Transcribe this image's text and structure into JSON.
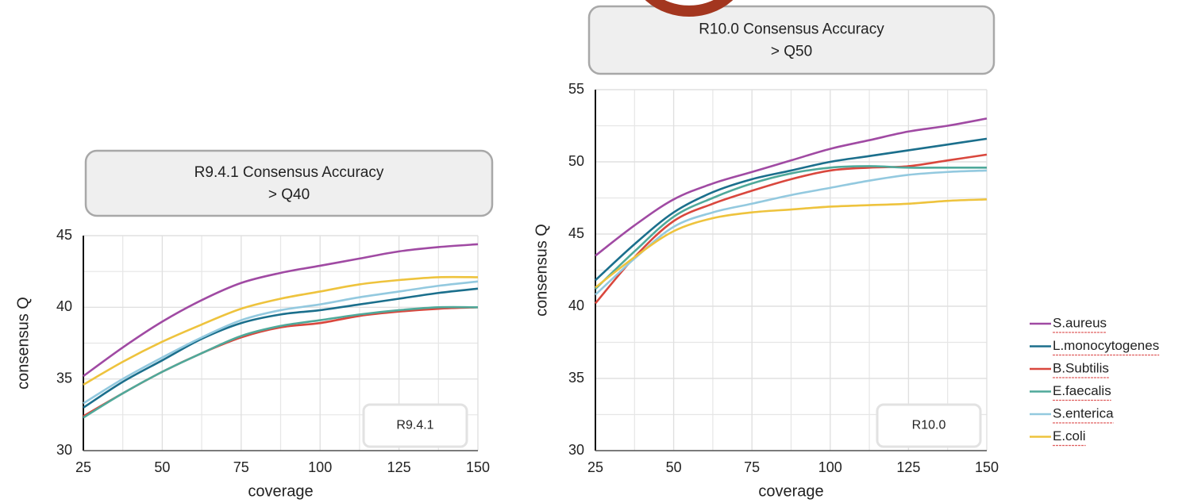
{
  "chart_data": [
    {
      "type": "line",
      "title": "R9.4.1 Consensus Accuracy",
      "subtitle": "> Q40",
      "annotation": "R9.4.1",
      "x_label": "coverage",
      "y_label": "consensus Q",
      "x": [
        25,
        37.5,
        50,
        62.5,
        75,
        87.5,
        100,
        112.5,
        125,
        137.5,
        150
      ],
      "xlim": [
        25,
        150
      ],
      "xticks": [
        25,
        50,
        75,
        100,
        125,
        150
      ],
      "ylim": [
        30,
        45
      ],
      "yticks": [
        30,
        35,
        40,
        45
      ],
      "grid": true,
      "series": [
        {
          "color": "#a04aa3",
          "values": [
            35.2,
            37.2,
            39,
            40.5,
            41.7,
            42.4,
            42.9,
            43.4,
            43.9,
            44.2,
            44.4
          ]
        },
        {
          "color": "#1b6f8c",
          "values": [
            33.0,
            34.8,
            36.3,
            37.8,
            38.9,
            39.5,
            39.8,
            40.2,
            40.6,
            41,
            41.3
          ]
        },
        {
          "color": "#d9473d",
          "values": [
            32.4,
            34,
            35.5,
            36.8,
            37.9,
            38.6,
            38.9,
            39.4,
            39.7,
            39.9,
            40.0
          ]
        },
        {
          "color": "#4fa99a",
          "values": [
            32.3,
            34,
            35.5,
            36.8,
            38,
            38.7,
            39.1,
            39.5,
            39.8,
            40,
            40.0
          ]
        },
        {
          "color": "#93c9df",
          "values": [
            33.3,
            35,
            36.5,
            37.9,
            39.1,
            39.8,
            40.2,
            40.7,
            41.1,
            41.5,
            41.8
          ]
        },
        {
          "color": "#eec33d",
          "values": [
            34.6,
            36.2,
            37.6,
            38.8,
            39.9,
            40.6,
            41.1,
            41.6,
            41.9,
            42.1,
            42.1
          ]
        }
      ]
    },
    {
      "type": "line",
      "title": "R10.0 Consensus Accuracy",
      "subtitle": "> Q50",
      "annotation": "R10.0",
      "x_label": "coverage",
      "y_label": "consensus Q",
      "x": [
        25,
        37.5,
        50,
        62.5,
        75,
        87.5,
        100,
        112.5,
        125,
        137.5,
        150
      ],
      "xlim": [
        25,
        150
      ],
      "xticks": [
        25,
        50,
        75,
        100,
        125,
        150
      ],
      "ylim": [
        30,
        55
      ],
      "yticks": [
        30,
        35,
        40,
        45,
        50,
        55
      ],
      "grid": true,
      "series": [
        {
          "name": "S.aureus",
          "color": "#a04aa3",
          "values": [
            43.5,
            45.6,
            47.4,
            48.5,
            49.3,
            50.1,
            50.9,
            51.5,
            52.1,
            52.5,
            53
          ]
        },
        {
          "name": "L.monocytogenes",
          "color": "#1b6f8c",
          "values": [
            41.8,
            44.3,
            46.5,
            47.9,
            48.8,
            49.4,
            50,
            50.4,
            50.8,
            51.2,
            51.6
          ]
        },
        {
          "name": "B.Subtilis",
          "color": "#d9473d",
          "values": [
            40.2,
            43.4,
            45.9,
            47.1,
            48,
            48.8,
            49.4,
            49.6,
            49.7,
            50.1,
            50.5
          ]
        },
        {
          "name": "E.faecalis",
          "color": "#4fa99a",
          "values": [
            41.2,
            43.8,
            46.2,
            47.5,
            48.5,
            49.2,
            49.6,
            49.7,
            49.6,
            49.6,
            49.6
          ]
        },
        {
          "name": "S.enterica",
          "color": "#93c9df",
          "values": [
            40.8,
            43.3,
            45.5,
            46.5,
            47.1,
            47.7,
            48.2,
            48.7,
            49.1,
            49.3,
            49.4
          ]
        },
        {
          "name": "E.coli",
          "color": "#eec33d",
          "values": [
            41.3,
            43.4,
            45.2,
            46.1,
            46.5,
            46.7,
            46.9,
            47,
            47.1,
            47.3,
            47.4
          ]
        }
      ]
    }
  ]
}
